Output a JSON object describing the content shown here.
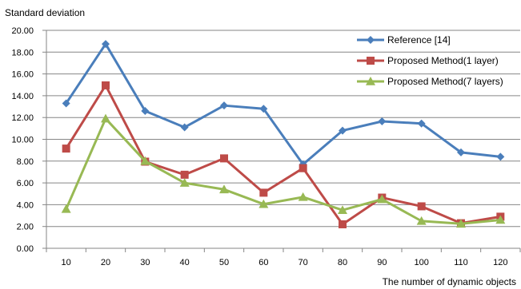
{
  "chart_data": {
    "type": "line",
    "title": "",
    "ylabel": "Standard deviation",
    "xlabel": "The number of dynamic objects",
    "categories": [
      "10",
      "20",
      "30",
      "40",
      "50",
      "60",
      "70",
      "80",
      "90",
      "100",
      "110",
      "120"
    ],
    "ylim": [
      0,
      20
    ],
    "yticks": [
      "0.00",
      "2.00",
      "4.00",
      "6.00",
      "8.00",
      "10.00",
      "12.00",
      "14.00",
      "16.00",
      "18.00",
      "20.00"
    ],
    "grid": true,
    "legend_position": "top-right",
    "series": [
      {
        "name": "Reference [14]",
        "color": "#4a7ebb",
        "marker": "diamond",
        "values": [
          13.3,
          18.75,
          12.6,
          11.1,
          13.1,
          12.8,
          7.7,
          10.8,
          11.65,
          11.45,
          8.8,
          8.4
        ]
      },
      {
        "name": "Proposed Method(1 layer)",
        "color": "#be4b48",
        "marker": "square",
        "values": [
          9.15,
          14.95,
          7.95,
          6.75,
          8.25,
          5.1,
          7.35,
          2.2,
          4.65,
          3.85,
          2.3,
          2.9
        ]
      },
      {
        "name": "Proposed Method(7 layers)",
        "color": "#98b954",
        "marker": "triangle",
        "values": [
          3.6,
          11.9,
          8.0,
          6.0,
          5.4,
          4.05,
          4.7,
          3.5,
          4.5,
          2.5,
          2.25,
          2.6
        ]
      }
    ]
  }
}
